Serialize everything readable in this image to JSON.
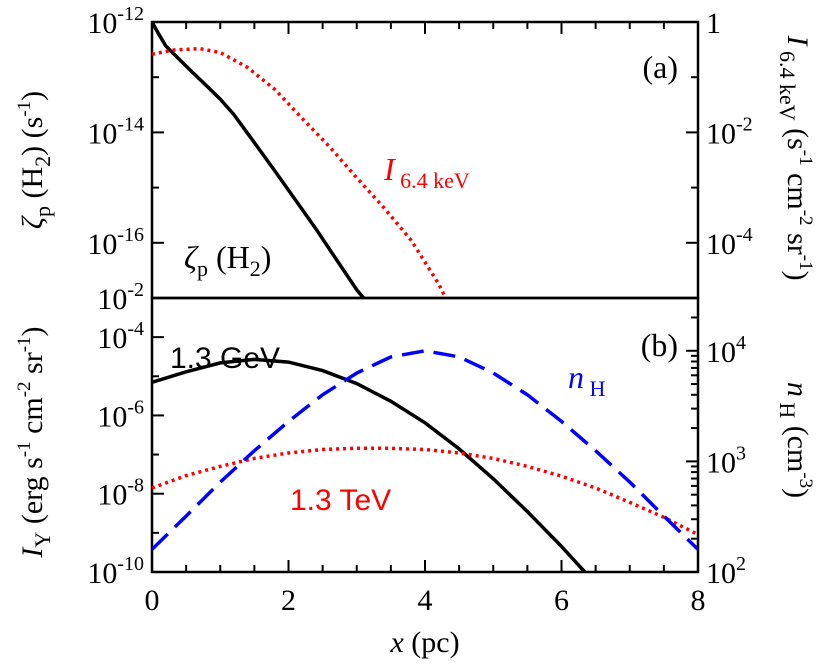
{
  "colors": {
    "black": "#000000",
    "red": "#ff0000",
    "blue": "#0000ff"
  },
  "chart_data": [
    {
      "panel": "(a)",
      "type": "line",
      "x_range": [
        0,
        8
      ],
      "left_axis": {
        "label_parts": [
          "ζ",
          "p",
          " (H",
          "2",
          ") (s",
          "-1",
          ")"
        ],
        "scale": "log",
        "range": [
          1e-17,
          1e-12
        ],
        "ticks": [
          {
            "mantissa": "10",
            "exp": "-12"
          },
          {
            "mantissa": "10",
            "exp": "-14"
          },
          {
            "mantissa": "10",
            "exp": "-16"
          }
        ]
      },
      "right_axis": {
        "label_parts": [
          "I",
          " 6.4 keV",
          " (s",
          "-1",
          " cm",
          "-2",
          " sr",
          "-1",
          ")"
        ],
        "scale": "log",
        "range": [
          1e-05,
          1
        ],
        "ticks": [
          {
            "mantissa": "10",
            "exp": "0",
            "plain": "1"
          },
          {
            "mantissa": "10",
            "exp": "-2"
          },
          {
            "mantissa": "10",
            "exp": "-4"
          }
        ]
      },
      "annotations": {
        "panel_label": "(a)",
        "zeta_label": [
          "ζ",
          "p",
          " (H",
          "2",
          ")"
        ],
        "i64_label": [
          "I",
          " 6.4 keV"
        ]
      },
      "series": [
        {
          "id": "zeta",
          "axis": "left",
          "color": "#000000",
          "style": "solid",
          "x": [
            0,
            0.1,
            0.2,
            0.4,
            0.6,
            0.8,
            1.0,
            1.2,
            1.5,
            1.8,
            2.1,
            2.4,
            2.7,
            3.0,
            3.1
          ],
          "y": [
            1e-12,
            6e-13,
            3.7e-13,
            2.1e-13,
            1.2e-13,
            7e-14,
            4e-14,
            2.1e-14,
            6.5e-15,
            2e-15,
            6e-16,
            1.8e-16,
            5e-17,
            1.4e-17,
            1e-17
          ]
        },
        {
          "id": "i64",
          "axis": "right",
          "color": "#ff0000",
          "style": "dotted",
          "x": [
            0,
            0.3,
            0.7,
            1.0,
            1.4,
            1.8,
            2.2,
            2.6,
            3.0,
            3.4,
            3.8,
            4.2,
            4.3
          ],
          "y": [
            0.26,
            0.31,
            0.33,
            0.28,
            0.15,
            0.06,
            0.018,
            0.0055,
            0.0015,
            0.00043,
            0.00011,
            1.8e-05,
            1e-05
          ]
        }
      ]
    },
    {
      "panel": "(b)",
      "type": "line",
      "x_range": [
        0,
        8
      ],
      "xlabel_parts": [
        "x",
        " (pc)"
      ],
      "x_ticks": [
        "0",
        "2",
        "4",
        "6",
        "8"
      ],
      "left_axis": {
        "label_parts": [
          "I",
          "Y",
          " (erg s",
          "-1",
          " cm",
          "-2",
          " sr",
          "-1",
          ")"
        ],
        "scale": "log",
        "range": [
          1e-10,
          0.001
        ],
        "ticks": [
          {
            "mantissa": "10",
            "exp": "-2",
            "top": true
          },
          {
            "mantissa": "10",
            "exp": "-4"
          },
          {
            "mantissa": "10",
            "exp": "-6"
          },
          {
            "mantissa": "10",
            "exp": "-8"
          },
          {
            "mantissa": "10",
            "exp": "-10"
          }
        ]
      },
      "right_axis": {
        "label_parts": [
          "n",
          " H",
          " (cm",
          "-3",
          ")"
        ],
        "scale": "log",
        "range": [
          100,
          30000
        ],
        "ticks": [
          {
            "mantissa": "10",
            "exp": "4"
          },
          {
            "mantissa": "10",
            "exp": "3"
          },
          {
            "mantissa": "10",
            "exp": "2"
          }
        ]
      },
      "annotations": {
        "panel_label": "(b)",
        "gev_label": "1.3 GeV",
        "tev_label": "1.3 TeV",
        "nh_label": [
          "n",
          " H"
        ]
      },
      "series": [
        {
          "id": "gev",
          "axis": "left",
          "color": "#000000",
          "style": "solid",
          "x": [
            0,
            0.5,
            1.0,
            1.5,
            2.0,
            2.5,
            3.0,
            3.5,
            4.0,
            4.5,
            5.0,
            5.5,
            6.0,
            6.5,
            7.0,
            7.1
          ],
          "y": [
            7e-06,
            1.3e-05,
            2.2e-05,
            2.7e-05,
            2.3e-05,
            1.4e-05,
            6.5e-06,
            2.3e-06,
            6.5e-07,
            1.4e-07,
            2.4e-08,
            3.5e-09,
            4.5e-10,
            5e-11,
            5e-12,
            1e-10
          ]
        },
        {
          "id": "tev",
          "axis": "left",
          "color": "#ff0000",
          "style": "dotted",
          "x": [
            0,
            0.5,
            1.0,
            1.5,
            2.0,
            2.5,
            3.0,
            3.5,
            4.0,
            4.5,
            5.0,
            5.5,
            6.0,
            6.5,
            7.0,
            7.5,
            8.0
          ],
          "y": [
            1.4e-08,
            2.9e-08,
            5e-08,
            8e-08,
            1.1e-07,
            1.35e-07,
            1.45e-07,
            1.45e-07,
            1.35e-07,
            1.1e-07,
            8e-08,
            5e-08,
            2.8e-08,
            1.4e-08,
            6e-09,
            2.5e-09,
            9e-10
          ]
        },
        {
          "id": "nh",
          "axis": "right",
          "color": "#0000ff",
          "style": "dashed",
          "x": [
            0,
            0.5,
            1.0,
            1.5,
            2.0,
            2.5,
            3.0,
            3.5,
            4.0,
            4.5,
            5.0,
            5.5,
            6.0,
            6.5,
            7.0,
            7.5,
            8.0
          ],
          "y": [
            160,
            320,
            650,
            1250,
            2300,
            4000,
            6300,
            8800,
            10000,
            8800,
            6300,
            4000,
            2300,
            1250,
            650,
            320,
            160
          ]
        }
      ]
    }
  ]
}
